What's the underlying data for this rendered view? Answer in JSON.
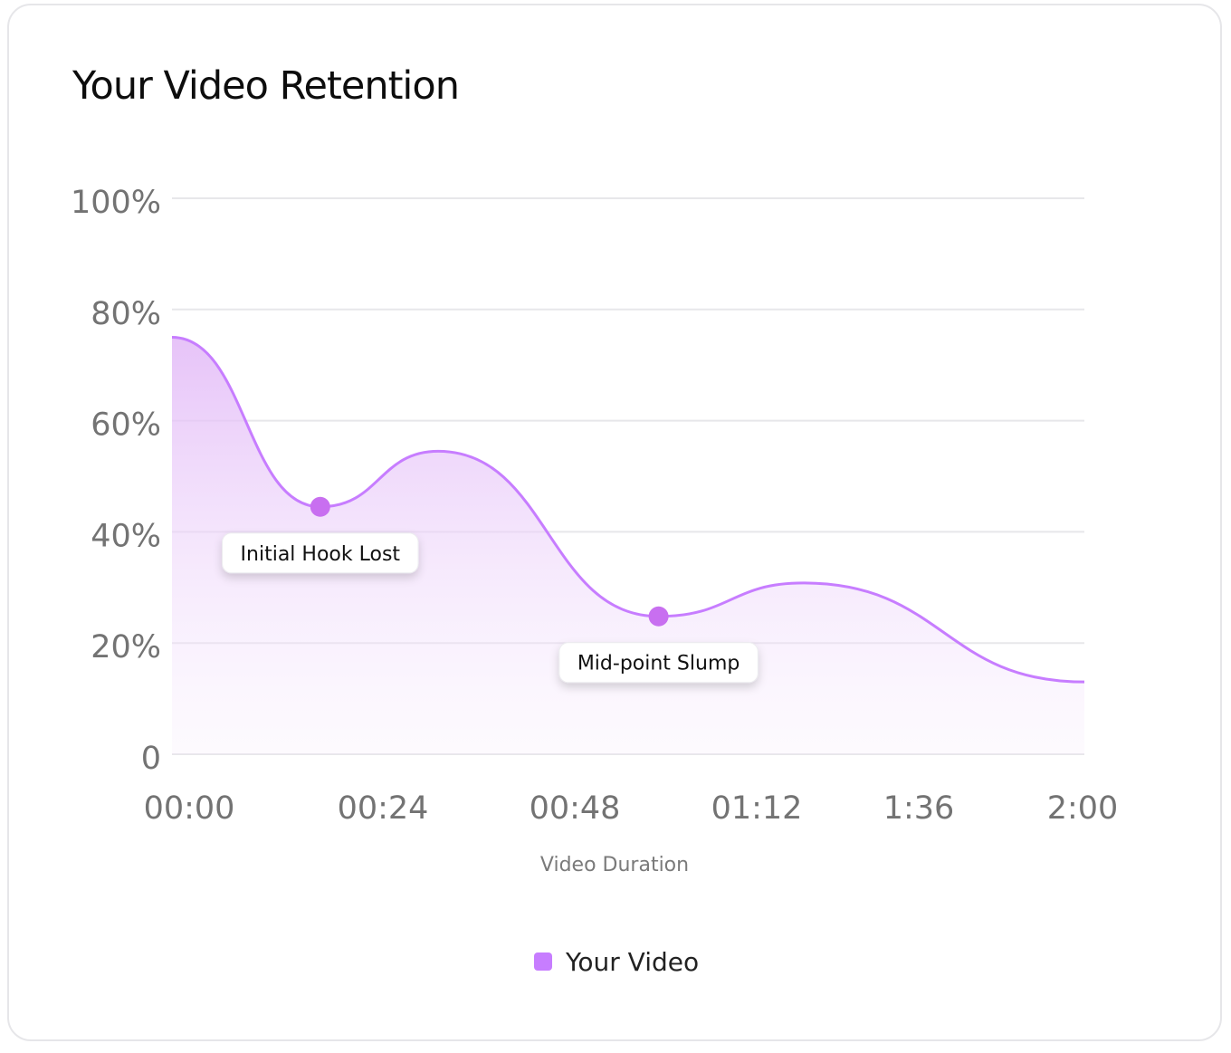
{
  "title": "Your Video Retention",
  "colors": {
    "series": "#c77dff",
    "point": "#c86ff0",
    "grid": "#e7e7ea",
    "tick": "#737373"
  },
  "chart_data": {
    "type": "area",
    "title": "Your Video Retention",
    "xlabel": "Video Duration",
    "ylabel": "",
    "x_ticks": [
      "00:00",
      "00:24",
      "00:48",
      "01:12",
      "1:36",
      "2:00"
    ],
    "y_ticks": [
      "100%",
      "80%",
      "60%",
      "40%",
      "20%",
      "0"
    ],
    "ylim": [
      0,
      100
    ],
    "xlim_seconds": [
      0,
      120
    ],
    "grid": true,
    "legend_position": "bottom-center",
    "series": [
      {
        "name": "Your Video",
        "x_seconds": [
          0,
          19.5,
          35,
          64,
          83,
          120
        ],
        "values": [
          75,
          44.5,
          54.5,
          24.8,
          30.8,
          13
        ]
      }
    ],
    "annotations": [
      {
        "label": "Initial Hook Lost",
        "x_seconds": 19.5,
        "value": 44.5
      },
      {
        "label": "Mid-point Slump",
        "x_seconds": 64,
        "value": 24.8
      }
    ]
  }
}
